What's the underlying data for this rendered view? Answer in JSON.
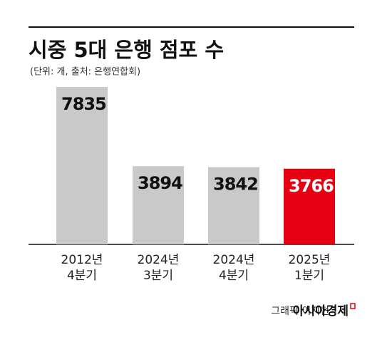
{
  "chart_data": {
    "type": "bar",
    "title": "시중 5대 은행 점포 수",
    "subtitle": "(단위: 개, 출처: 은행연합회)",
    "categories": [
      [
        "2012년",
        "4분기"
      ],
      [
        "2024년",
        "3분기"
      ],
      [
        "2024년",
        "4분기"
      ],
      [
        "2025년",
        "1분기"
      ]
    ],
    "values": [
      7835,
      3894,
      3842,
      3766
    ],
    "colors": [
      "#c9c9c9",
      "#c9c9c9",
      "#c9c9c9",
      "#e60012"
    ],
    "label_colors": [
      "#111111",
      "#111111",
      "#111111",
      "#ffffff"
    ],
    "credit": "그래픽 이지현",
    "brand": "아시아경제"
  }
}
